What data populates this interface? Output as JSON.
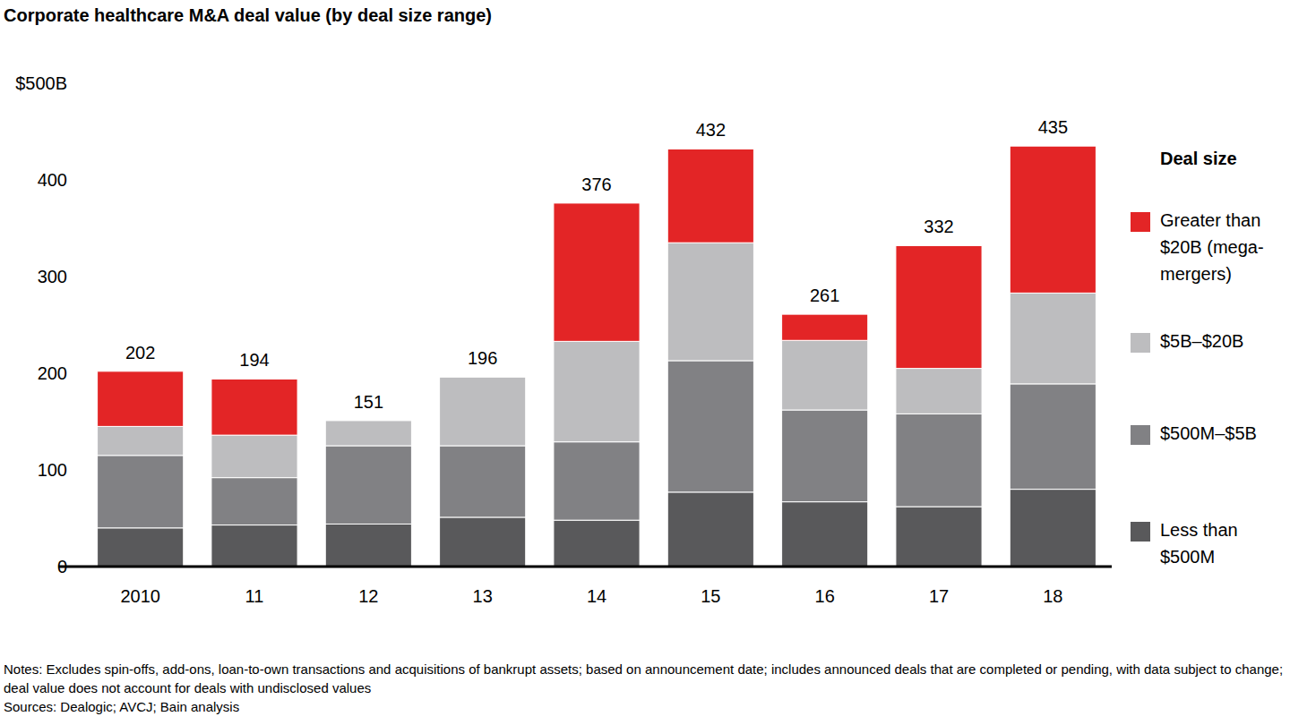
{
  "chart_data": {
    "type": "bar",
    "title": "Corporate healthcare M&A deal value (by deal size range)",
    "stacked": true,
    "grid": false,
    "legend": "right",
    "legend_title": "Deal size",
    "categories": [
      "2010",
      "11",
      "12",
      "13",
      "14",
      "15",
      "16",
      "17",
      "18"
    ],
    "series": [
      {
        "name": "Less than $500M",
        "color": "#59595b",
        "values": [
          40,
          43,
          44,
          51,
          48,
          77,
          67,
          62,
          80
        ]
      },
      {
        "name": "$500M–$5B",
        "color": "#818184",
        "values": [
          75,
          49,
          81,
          74,
          81,
          136,
          95,
          96,
          109
        ]
      },
      {
        "name": "$5B–$20B",
        "color": "#bdbdbf",
        "values": [
          30,
          44,
          26,
          71,
          104,
          122,
          72,
          47,
          94
        ]
      },
      {
        "name": "Greater than $20B (mega-mergers)",
        "color": "#e32526",
        "values": [
          57,
          58,
          0,
          0,
          143,
          97,
          27,
          127,
          152
        ]
      }
    ],
    "totals": [
      202,
      194,
      151,
      196,
      376,
      432,
      261,
      332,
      435
    ],
    "ylim": [
      0,
      500
    ],
    "yticks": [
      0,
      100,
      200,
      300,
      400,
      {
        "value": 500,
        "label": "$500B"
      }
    ],
    "notes": [
      "Notes: Excludes spin-offs, add-ons, loan-to-own transactions and acquisitions of bankrupt assets; based on announcement date; includes announced deals that are completed or pending, with data subject to change; deal value does not account for deals with undisclosed values",
      "Sources: Dealogic; AVCJ; Bain analysis"
    ]
  }
}
